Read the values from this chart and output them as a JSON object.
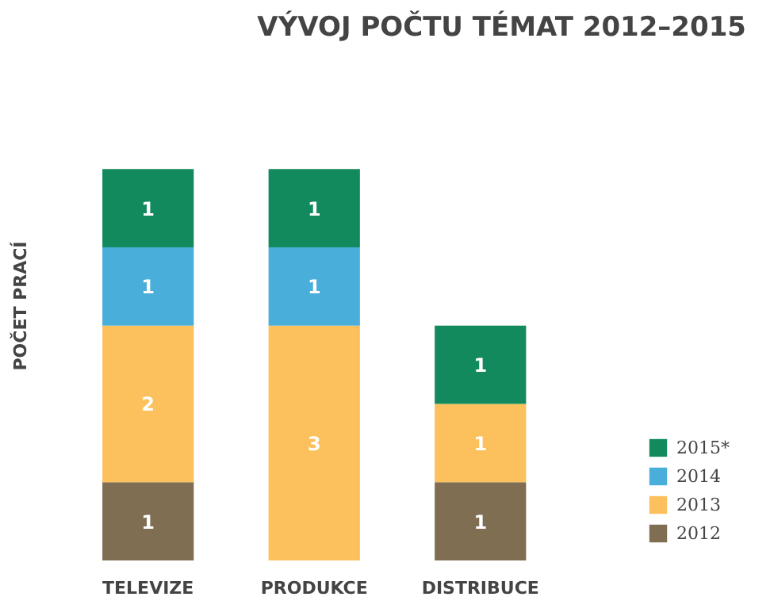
{
  "chart_data": {
    "type": "bar",
    "title": "VÝVOJ POČTU TÉMAT 2012–2015",
    "ylabel": "POČET PRACÍ",
    "categories": [
      "TELEVIZE",
      "PRODUKCE",
      "DISTRIBUCE"
    ],
    "stacked": true,
    "data_labels": true,
    "legend": "bottom right",
    "tick_labels": "x",
    "grid": false,
    "series": [
      {
        "name": "2012",
        "color": "#7f6e52",
        "values": [
          1,
          null,
          1
        ]
      },
      {
        "name": "2013",
        "color": "#fcc05c",
        "values": [
          2,
          3,
          1
        ]
      },
      {
        "name": "2014",
        "color": "#4aaedb",
        "values": [
          1,
          1,
          null
        ]
      },
      {
        "name": "2015*",
        "color": "#138a5e",
        "values": [
          1,
          1,
          1
        ]
      }
    ]
  }
}
